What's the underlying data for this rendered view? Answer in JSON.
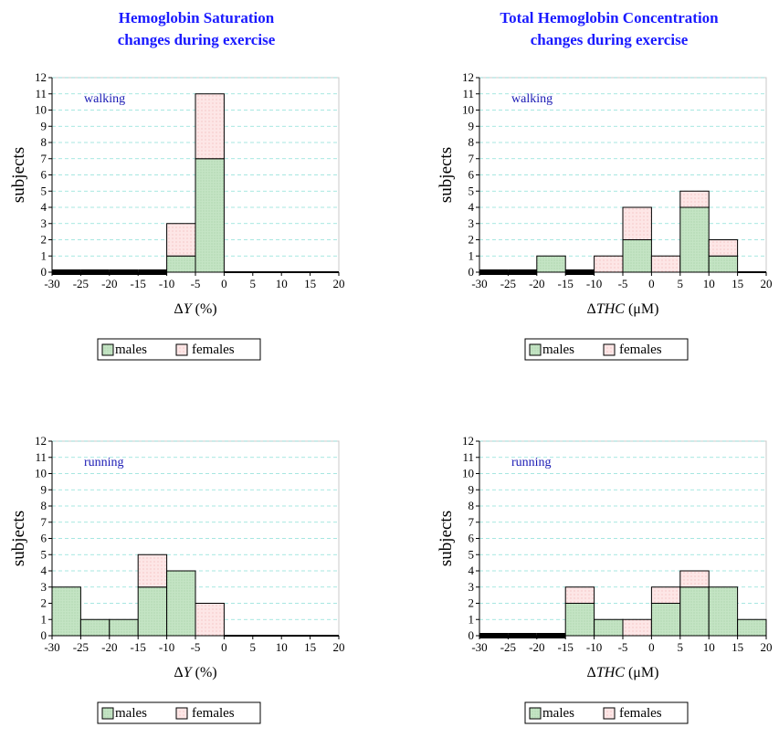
{
  "columns": [
    {
      "title_line1": "Hemoglobin Saturation",
      "title_line2": "changes during exercise"
    },
    {
      "title_line1": "Total Hemoglobin Concentration",
      "title_line2": "changes during exercise"
    }
  ],
  "colors": {
    "males": "#c4e4c4",
    "females": "#fde6e6",
    "females_dot": "#e79a9a",
    "males_dot": "#8fc08f",
    "annotation": "#1a1ab4",
    "title": "#1a1aff",
    "grid": "#8ae0d8"
  },
  "legend": {
    "males": "males",
    "females": "females"
  },
  "chart_data": [
    {
      "type": "bar",
      "stacked": true,
      "annotation": "walking",
      "xlabel_symbol": "Y",
      "xlabel_unit": "(%)",
      "ylabel": "subjects",
      "xlim": [
        -30,
        20
      ],
      "ylim": [
        0,
        12
      ],
      "xticks": [
        "-30",
        "-25",
        "-20",
        "-15",
        "-10",
        "-5",
        "0",
        "5",
        "10",
        "15",
        "20"
      ],
      "yticks": [
        "0",
        "1",
        "2",
        "3",
        "4",
        "5",
        "6",
        "7",
        "8",
        "9",
        "10",
        "11",
        "12"
      ],
      "grid": true,
      "legend_placement": "bottom",
      "bins": [
        {
          "from": -30,
          "to": -25,
          "males": 0,
          "females": 0
        },
        {
          "from": -25,
          "to": -20,
          "males": 0,
          "females": 0
        },
        {
          "from": -20,
          "to": -15,
          "males": 0,
          "females": 0
        },
        {
          "from": -15,
          "to": -10,
          "males": 0,
          "females": 0
        },
        {
          "from": -10,
          "to": -5,
          "males": 1,
          "females": 2
        },
        {
          "from": -5,
          "to": 0,
          "males": 7,
          "females": 4
        },
        {
          "from": 0,
          "to": 5,
          "males": 0,
          "females": 0
        },
        {
          "from": 5,
          "to": 10,
          "males": 0,
          "females": 0
        },
        {
          "from": 10,
          "to": 15,
          "males": 0,
          "females": 0
        },
        {
          "from": 15,
          "to": 20,
          "males": 0,
          "females": 0
        }
      ]
    },
    {
      "type": "bar",
      "stacked": true,
      "annotation": "walking",
      "xlabel_symbol": "THC",
      "xlabel_unit": "(μM)",
      "ylabel": "subjects",
      "xlim": [
        -30,
        20
      ],
      "ylim": [
        0,
        12
      ],
      "xticks": [
        "-30",
        "-25",
        "-20",
        "-15",
        "-10",
        "-5",
        "0",
        "5",
        "10",
        "15",
        "20"
      ],
      "yticks": [
        "0",
        "1",
        "2",
        "3",
        "4",
        "5",
        "6",
        "7",
        "8",
        "9",
        "10",
        "11",
        "12"
      ],
      "grid": true,
      "legend_placement": "bottom",
      "bins": [
        {
          "from": -30,
          "to": -25,
          "males": 0,
          "females": 0
        },
        {
          "from": -25,
          "to": -20,
          "males": 0,
          "females": 0
        },
        {
          "from": -20,
          "to": -15,
          "males": 1,
          "females": 0
        },
        {
          "from": -15,
          "to": -10,
          "males": 0,
          "females": 0
        },
        {
          "from": -10,
          "to": -5,
          "males": 0,
          "females": 1
        },
        {
          "from": -5,
          "to": 0,
          "males": 2,
          "females": 2
        },
        {
          "from": 0,
          "to": 5,
          "males": 0,
          "females": 1
        },
        {
          "from": 5,
          "to": 10,
          "males": 4,
          "females": 1
        },
        {
          "from": 10,
          "to": 15,
          "males": 1,
          "females": 1
        },
        {
          "from": 15,
          "to": 20,
          "males": 0,
          "females": 0
        }
      ]
    },
    {
      "type": "bar",
      "stacked": true,
      "annotation": "running",
      "xlabel_symbol": "Y",
      "xlabel_unit": "(%)",
      "ylabel": "subjects",
      "xlim": [
        -30,
        20
      ],
      "ylim": [
        0,
        12
      ],
      "xticks": [
        "-30",
        "-25",
        "-20",
        "-15",
        "-10",
        "-5",
        "0",
        "5",
        "10",
        "15",
        "20"
      ],
      "yticks": [
        "0",
        "1",
        "2",
        "3",
        "4",
        "5",
        "6",
        "7",
        "8",
        "9",
        "10",
        "11",
        "12"
      ],
      "grid": true,
      "legend_placement": "bottom",
      "bins": [
        {
          "from": -30,
          "to": -25,
          "males": 3,
          "females": 0
        },
        {
          "from": -25,
          "to": -20,
          "males": 1,
          "females": 0
        },
        {
          "from": -20,
          "to": -15,
          "males": 1,
          "females": 0
        },
        {
          "from": -15,
          "to": -10,
          "males": 3,
          "females": 2
        },
        {
          "from": -10,
          "to": -5,
          "males": 4,
          "females": 0
        },
        {
          "from": -5,
          "to": 0,
          "males": 0,
          "females": 2
        },
        {
          "from": 0,
          "to": 5,
          "males": 0,
          "females": 0
        },
        {
          "from": 5,
          "to": 10,
          "males": 0,
          "females": 0
        },
        {
          "from": 10,
          "to": 15,
          "males": 0,
          "females": 0
        },
        {
          "from": 15,
          "to": 20,
          "males": 0,
          "females": 0
        }
      ]
    },
    {
      "type": "bar",
      "stacked": true,
      "annotation": "running",
      "xlabel_symbol": "THC",
      "xlabel_unit": "(μM)",
      "ylabel": "subjects",
      "xlim": [
        -30,
        20
      ],
      "ylim": [
        0,
        12
      ],
      "xticks": [
        "-30",
        "-25",
        "-20",
        "-15",
        "-10",
        "-5",
        "0",
        "5",
        "10",
        "15",
        "20"
      ],
      "yticks": [
        "0",
        "1",
        "2",
        "3",
        "4",
        "5",
        "6",
        "7",
        "8",
        "9",
        "10",
        "11",
        "12"
      ],
      "grid": true,
      "legend_placement": "bottom",
      "bins": [
        {
          "from": -30,
          "to": -25,
          "males": 0,
          "females": 0
        },
        {
          "from": -25,
          "to": -20,
          "males": 0,
          "females": 0
        },
        {
          "from": -20,
          "to": -15,
          "males": 0,
          "females": 0
        },
        {
          "from": -15,
          "to": -10,
          "males": 2,
          "females": 1
        },
        {
          "from": -10,
          "to": -5,
          "males": 1,
          "females": 0
        },
        {
          "from": -5,
          "to": 0,
          "males": 0,
          "females": 1
        },
        {
          "from": 0,
          "to": 5,
          "males": 2,
          "females": 1
        },
        {
          "from": 5,
          "to": 10,
          "males": 3,
          "females": 1
        },
        {
          "from": 10,
          "to": 15,
          "males": 3,
          "females": 0
        },
        {
          "from": 15,
          "to": 20,
          "males": 1,
          "females": 0
        }
      ]
    }
  ]
}
